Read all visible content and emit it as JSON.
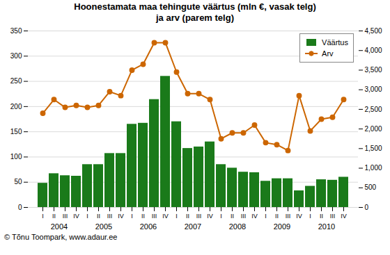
{
  "chart_data": {
    "type": "bar",
    "title": "Hoonestamata maa tehingute väärtus (mln €, vasak telg)\nja arv (parem telg)",
    "categories": [
      "I",
      "II",
      "III",
      "IV",
      "I",
      "II",
      "III",
      "IV",
      "I",
      "II",
      "III",
      "IV",
      "I",
      "II",
      "III",
      "IV",
      "I",
      "II",
      "III",
      "IV",
      "I",
      "II",
      "III",
      "IV",
      "I",
      "II",
      "III",
      "IV"
    ],
    "category_groups": [
      2004,
      2005,
      2006,
      2007,
      2008,
      2009,
      2010
    ],
    "series": [
      {
        "name": "Väärtus",
        "type": "bar",
        "color": "#1a7a1a",
        "values": [
          48,
          67,
          63,
          62,
          85,
          85,
          107,
          107,
          165,
          167,
          214,
          260,
          170,
          117,
          120,
          130,
          85,
          78,
          70,
          69,
          52,
          57,
          57,
          33,
          42,
          55,
          54,
          60
        ]
      },
      {
        "name": "Arv",
        "type": "line",
        "axis": "y2",
        "color": "#cc6600",
        "marker": "circle",
        "values": [
          2400,
          2750,
          2550,
          2600,
          2550,
          2600,
          2950,
          2850,
          3500,
          3650,
          4200,
          4200,
          3450,
          2900,
          2900,
          2750,
          1750,
          1900,
          1900,
          2100,
          1650,
          1600,
          1450,
          2850,
          1950,
          2250,
          2300,
          2750
        ]
      }
    ],
    "ylim": [
      0,
      350
    ],
    "yticks": [
      0,
      50,
      100,
      150,
      200,
      250,
      300,
      350
    ],
    "y2lim": [
      0,
      4500
    ],
    "y2ticks": [
      0,
      500,
      1000,
      1500,
      2000,
      2500,
      3000,
      3500,
      4000,
      4500
    ],
    "grid": true,
    "legend": "upper right",
    "annotations": [
      "© Tõnu Toompark, www.adaur.ee"
    ]
  }
}
